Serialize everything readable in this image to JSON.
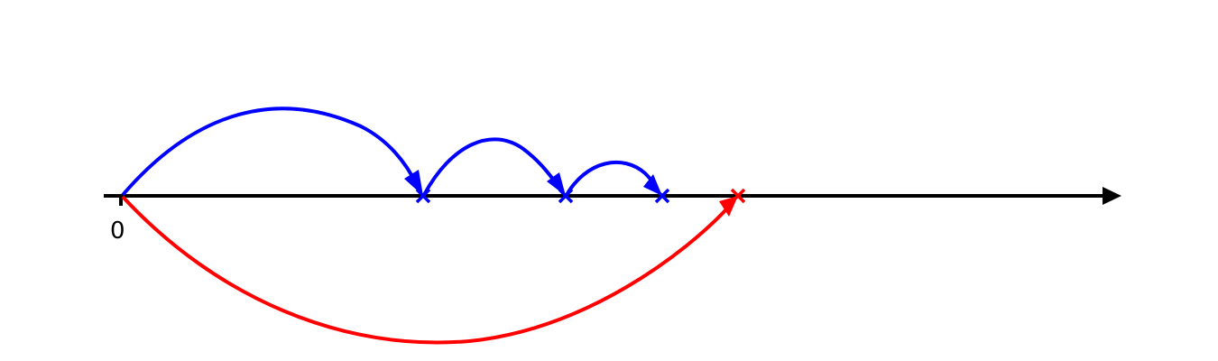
{
  "number_line": {
    "origin_label": "0",
    "axis_color": "#000000"
  },
  "colors": {
    "blue": "#0000ff",
    "red": "#ff0000"
  },
  "icons": {
    "axis_head": "arrowhead-icon",
    "marker": "cross-mark-icon"
  }
}
